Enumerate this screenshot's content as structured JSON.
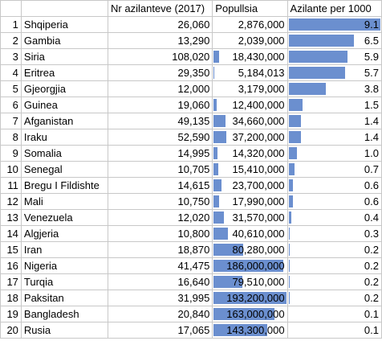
{
  "headers": {
    "asylum": "Nr azilanteve (2017)",
    "population": "Popullsia",
    "rate": "Azilante per 1000"
  },
  "colors": {
    "bar": "#6b8fcf"
  },
  "rows": [
    {
      "rank": "1",
      "country": "Shqiperia",
      "asylum": "26,060",
      "population": "2,876,000",
      "rate": "9.1",
      "pop_num": 2876000,
      "rate_num": 9.1
    },
    {
      "rank": "2",
      "country": "Gambia",
      "asylum": "13,290",
      "population": "2,039,000",
      "rate": "6.5",
      "pop_num": 2039000,
      "rate_num": 6.5
    },
    {
      "rank": "3",
      "country": "Siria",
      "asylum": "108,020",
      "population": "18,430,000",
      "rate": "5.9",
      "pop_num": 18430000,
      "rate_num": 5.9
    },
    {
      "rank": "4",
      "country": "Eritrea",
      "asylum": "29,350",
      "population": "5,184,013",
      "rate": "5.7",
      "pop_num": 5184013,
      "rate_num": 5.7
    },
    {
      "rank": "5",
      "country": "Gjeorgjia",
      "asylum": "12,000",
      "population": "3,179,000",
      "rate": "3.8",
      "pop_num": 3179000,
      "rate_num": 3.8
    },
    {
      "rank": "6",
      "country": "Guinea",
      "asylum": "19,060",
      "population": "12,400,000",
      "rate": "1.5",
      "pop_num": 12400000,
      "rate_num": 1.5
    },
    {
      "rank": "7",
      "country": "Afganistan",
      "asylum": "49,135",
      "population": "34,660,000",
      "rate": "1.4",
      "pop_num": 34660000,
      "rate_num": 1.4
    },
    {
      "rank": "8",
      "country": "Iraku",
      "asylum": "52,590",
      "population": "37,200,000",
      "rate": "1.4",
      "pop_num": 37200000,
      "rate_num": 1.4
    },
    {
      "rank": "9",
      "country": "Somalia",
      "asylum": "14,995",
      "population": "14,320,000",
      "rate": "1.0",
      "pop_num": 14320000,
      "rate_num": 1.0
    },
    {
      "rank": "10",
      "country": "Senegal",
      "asylum": "10,705",
      "population": "15,410,000",
      "rate": "0.7",
      "pop_num": 15410000,
      "rate_num": 0.7
    },
    {
      "rank": "11",
      "country": "Bregu I Fildishte",
      "asylum": "14,615",
      "population": "23,700,000",
      "rate": "0.6",
      "pop_num": 23700000,
      "rate_num": 0.6
    },
    {
      "rank": "12",
      "country": "Mali",
      "asylum": "10,750",
      "population": "17,990,000",
      "rate": "0.6",
      "pop_num": 17990000,
      "rate_num": 0.6
    },
    {
      "rank": "13",
      "country": "Venezuela",
      "asylum": "12,020",
      "population": "31,570,000",
      "rate": "0.4",
      "pop_num": 31570000,
      "rate_num": 0.4
    },
    {
      "rank": "14",
      "country": "Algjeria",
      "asylum": "10,800",
      "population": "40,610,000",
      "rate": "0.3",
      "pop_num": 40610000,
      "rate_num": 0.3
    },
    {
      "rank": "15",
      "country": "Iran",
      "asylum": "18,870",
      "population": "80,280,000",
      "rate": "0.2",
      "pop_num": 80280000,
      "rate_num": 0.2
    },
    {
      "rank": "16",
      "country": "Nigeria",
      "asylum": "41,475",
      "population": "186,000,000",
      "rate": "0.2",
      "pop_num": 186000000,
      "rate_num": 0.2
    },
    {
      "rank": "17",
      "country": "Turqia",
      "asylum": "16,640",
      "population": "79,510,000",
      "rate": "0.2",
      "pop_num": 79510000,
      "rate_num": 0.2
    },
    {
      "rank": "18",
      "country": "Paksitan",
      "asylum": "31,995",
      "population": "193,200,000",
      "rate": "0.2",
      "pop_num": 193200000,
      "rate_num": 0.2
    },
    {
      "rank": "19",
      "country": "Bangladesh",
      "asylum": "20,840",
      "population": "163,000,000",
      "rate": "0.1",
      "pop_num": 163000000,
      "rate_num": 0.1
    },
    {
      "rank": "20",
      "country": "Rusia",
      "asylum": "17,065",
      "population": "143,300,000",
      "rate": "0.1",
      "pop_num": 143300000,
      "rate_num": 0.1
    }
  ]
}
